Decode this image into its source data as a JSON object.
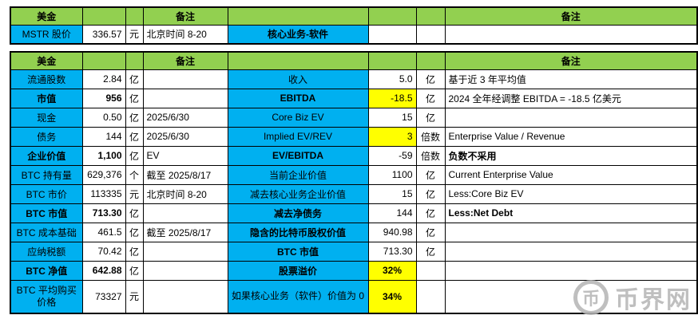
{
  "colors": {
    "green": "#92D050",
    "blue": "#00B0F0",
    "yellow": "#FFFF00",
    "watermark": "#b5b5b5"
  },
  "top": {
    "header": {
      "money": "美金",
      "note": "备注",
      "note_right": "备注"
    },
    "row": {
      "label": "MSTR 股价",
      "value": "336.57",
      "unit": "元",
      "note": "北京时间 8-20",
      "mid_label": "核心业务-软件"
    }
  },
  "main": {
    "header": {
      "money": "美金",
      "note": "备注",
      "note_right": "备注"
    },
    "rows": [
      {
        "label": "流通股数",
        "value": "2.84",
        "unit": "亿",
        "note": "",
        "mid_label": "收入",
        "mid_value": "5.0",
        "mid_unit": "亿",
        "mid_note": "基于近 3 年平均值"
      },
      {
        "label": "市值",
        "label_bold": true,
        "value": "956",
        "value_bold": true,
        "unit": "亿",
        "note": "",
        "mid_label": "EBITDA",
        "mid_label_bold": true,
        "mid_value": "-18.5",
        "mid_value_highlight": true,
        "mid_unit": "亿",
        "mid_note": "2024 全年经调整 EBITDA = -18.5 亿美元"
      },
      {
        "label": "现金",
        "value": "0.50",
        "unit": "亿",
        "note": "2025/6/30",
        "mid_label": "Core Biz EV",
        "mid_value": "15",
        "mid_unit": "亿",
        "mid_note": ""
      },
      {
        "label": "债务",
        "value": "144",
        "unit": "亿",
        "note": "2025/6/30",
        "mid_label": "Implied EV/REV",
        "mid_value": "3",
        "mid_value_highlight": true,
        "mid_unit": "倍数",
        "mid_note": "Enterprise Value / Revenue"
      },
      {
        "label": "企业价值",
        "label_bold": true,
        "value": "1,100",
        "value_bold": true,
        "unit": "亿",
        "note": "EV",
        "mid_label": "EV/EBITDA",
        "mid_label_bold": true,
        "mid_value": "-59",
        "mid_unit": "倍数",
        "mid_note": "负数不采用",
        "mid_note_bold": true
      },
      {
        "label": "BTC 持有量",
        "value": "629,376",
        "unit": "个",
        "note": "截至 2025/8/17",
        "mid_label": "当前企业价值",
        "mid_value": "1100",
        "mid_unit": "亿",
        "mid_note": "Current Enterprise Value"
      },
      {
        "label": "BTC 市价",
        "value": "113335",
        "unit": "元",
        "note": "北京时间 8-20",
        "mid_label": "减去核心业务企业价值",
        "mid_value": "15",
        "mid_unit": "亿",
        "mid_note": "Less:Core Biz EV"
      },
      {
        "label": "BTC 市值",
        "label_bold": true,
        "value": "713.30",
        "value_bold": true,
        "unit": "亿",
        "note": "",
        "mid_label": "减去净债务",
        "mid_label_bold": true,
        "mid_value": "144",
        "mid_unit": "亿",
        "mid_note": "Less:Net Debt",
        "mid_note_bold": true
      },
      {
        "label": "BTC 成本基础",
        "value": "461.5",
        "unit": "亿",
        "note": "截至 2025/8/17",
        "mid_label": "隐含的比特币股权价值",
        "mid_label_bold": true,
        "mid_value": "940.98",
        "mid_unit": "亿",
        "mid_note": ""
      },
      {
        "label": "应纳税额",
        "value": "70.42",
        "unit": "亿",
        "note": "",
        "mid_label": "BTC 市值",
        "mid_label_bold": true,
        "mid_value": "713.30",
        "mid_unit": "亿",
        "mid_note": ""
      },
      {
        "label": "BTC 净值",
        "label_bold": true,
        "value": "642.88",
        "value_bold": true,
        "unit": "亿",
        "note": "",
        "mid_label": "股票溢价",
        "mid_label_bold": true,
        "mid_value": "32%",
        "mid_value_bold": true,
        "mid_value_highlight": true,
        "mid_unit": "",
        "mid_note": ""
      },
      {
        "label": "BTC 平均购买价格",
        "value": "73327",
        "unit": "元",
        "note": "",
        "mid_label": "如果核心业务（软件）价值为 0",
        "mid_value": "34%",
        "mid_value_bold": true,
        "mid_value_highlight": true,
        "mid_unit": "",
        "mid_note": "",
        "tall": true
      }
    ]
  },
  "watermark": {
    "symbol": "币",
    "text": "币界网"
  }
}
